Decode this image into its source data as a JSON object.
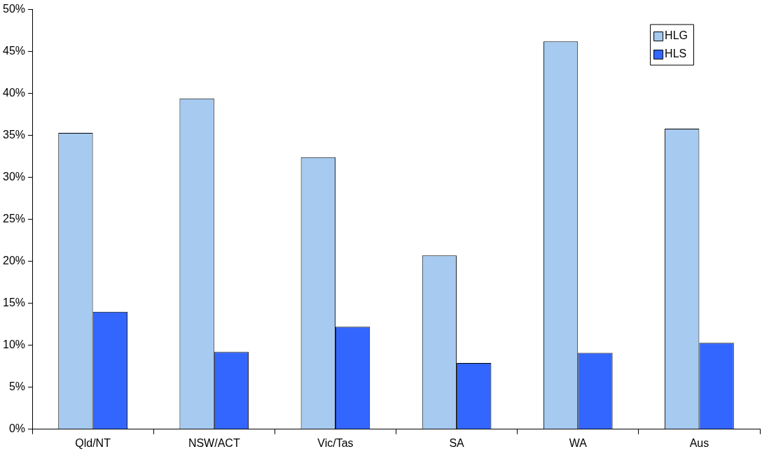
{
  "chart_data": {
    "type": "bar",
    "categories": [
      "Qld/NT",
      "NSW/ACT",
      "Vic/Tas",
      "SA",
      "WA",
      "Aus"
    ],
    "series": [
      {
        "name": "HLG",
        "color": "#a6caf0",
        "values": [
          35.3,
          39.4,
          32.4,
          20.7,
          46.2,
          35.8
        ]
      },
      {
        "name": "HLS",
        "color": "#3366ff",
        "values": [
          14.0,
          9.2,
          12.2,
          7.9,
          9.1,
          10.3
        ]
      }
    ],
    "ylim": [
      0,
      50
    ],
    "yticks": [
      {
        "value": 0,
        "label": "0%"
      },
      {
        "value": 5,
        "label": "5%"
      },
      {
        "value": 10,
        "label": "10%"
      },
      {
        "value": 15,
        "label": "15%"
      },
      {
        "value": 20,
        "label": "20%"
      },
      {
        "value": 25,
        "label": "25%"
      },
      {
        "value": 30,
        "label": "30%"
      },
      {
        "value": 35,
        "label": "35%"
      },
      {
        "value": 40,
        "label": "40%"
      },
      {
        "value": 45,
        "label": "45%"
      },
      {
        "value": 50,
        "label": "50%"
      }
    ],
    "grid": false,
    "legend": "top right"
  }
}
